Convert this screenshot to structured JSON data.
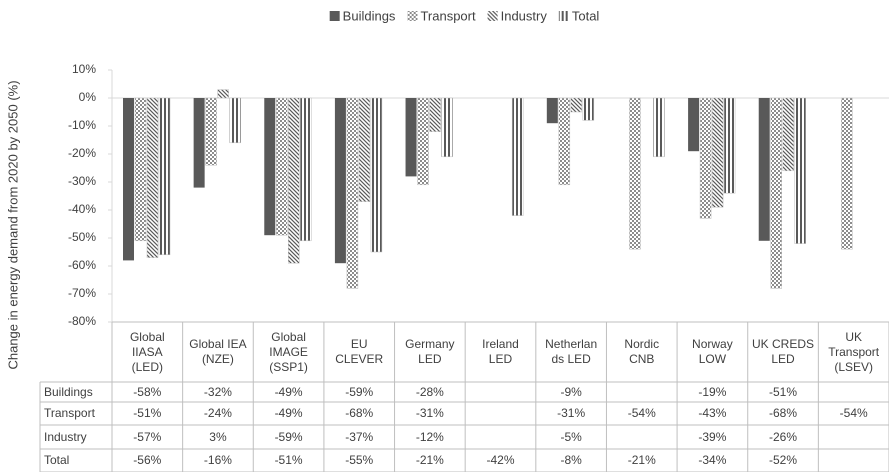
{
  "chart_data": {
    "type": "bar",
    "y_label": "Change in energy demand from 2020 by 2050 (%)",
    "categories": [
      "Global\nIIASA\n(LED)",
      "Global IEA\n(NZE)",
      "Global\nIMAGE\n(SSP1)",
      "EU\nCLEVER",
      "Germany\nLED",
      "Ireland\nLED",
      "Netherlan\nds LED",
      "Nordic\nCNB",
      "Norway\nLOW",
      "UK CREDS\nLED",
      "UK\nTransport\n(LSEV)"
    ],
    "series": [
      {
        "name": "Buildings",
        "color": "#595959",
        "pattern": "solid",
        "values": [
          -58,
          -32,
          -49,
          -59,
          -28,
          null,
          -9,
          null,
          -19,
          -51,
          null
        ],
        "value_labels": [
          "-58%",
          "-32%",
          "-49%",
          "-59%",
          "-28%",
          null,
          "-9%",
          null,
          "-19%",
          "-51%",
          null
        ]
      },
      {
        "name": "Transport",
        "color": "#8c8c8c",
        "pattern": "checker",
        "values": [
          -51,
          -24,
          -49,
          -68,
          -31,
          null,
          -31,
          -54,
          -43,
          -68,
          -54
        ],
        "value_labels": [
          "-51%",
          "-24%",
          "-49%",
          "-68%",
          "-31%",
          null,
          "-31%",
          "-54%",
          "-43%",
          "-68%",
          "-54%"
        ]
      },
      {
        "name": "Industry",
        "color": "#595959",
        "pattern": "diagonal",
        "values": [
          -57,
          3,
          -59,
          -37,
          -12,
          null,
          -5,
          null,
          -39,
          -26,
          null
        ],
        "value_labels": [
          "-57%",
          "3%",
          "-59%",
          "-37%",
          "-12%",
          null,
          "-5%",
          null,
          "-39%",
          "-26%",
          null
        ]
      },
      {
        "name": "Total",
        "color": "#595959",
        "pattern": "vertical",
        "values": [
          -56,
          -16,
          -51,
          -55,
          -21,
          -42,
          -8,
          -21,
          -34,
          -52,
          null
        ],
        "value_labels": [
          "-56%",
          "-16%",
          "-51%",
          "-55%",
          "-21%",
          "-42%",
          "-8%",
          "-21%",
          "-34%",
          "-52%",
          null
        ]
      }
    ],
    "ylim": [
      -80,
      10
    ],
    "yticks": [
      {
        "value": 10,
        "label": "10%"
      },
      {
        "value": 0,
        "label": "0%"
      },
      {
        "value": -10,
        "label": "-10%"
      },
      {
        "value": -20,
        "label": "-20%"
      },
      {
        "value": -30,
        "label": "-30%"
      },
      {
        "value": -40,
        "label": "-40%"
      },
      {
        "value": -50,
        "label": "-50%"
      },
      {
        "value": -60,
        "label": "-60%"
      },
      {
        "value": -70,
        "label": "-70%"
      },
      {
        "value": -80,
        "label": "-80%"
      }
    ],
    "legend": "top"
  }
}
